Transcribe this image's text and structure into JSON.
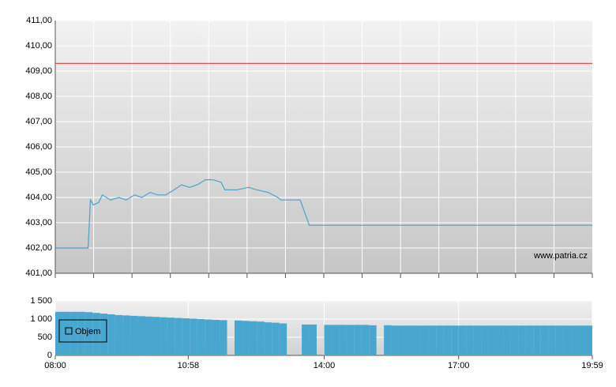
{
  "chart_data": [
    {
      "type": "line",
      "annotation": "www.patria.cz",
      "x": [
        "08:00",
        "08:44",
        "08:47",
        "08:51",
        "08:58",
        "09:03",
        "09:14",
        "09:25",
        "09:35",
        "09:46",
        "09:56",
        "10:07",
        "10:17",
        "10:28",
        "10:39",
        "10:49",
        "11:00",
        "11:10",
        "11:21",
        "11:31",
        "11:42",
        "11:47",
        "12:03",
        "12:19",
        "12:30",
        "12:45",
        "12:58",
        "13:02",
        "13:28",
        "13:40",
        "19:59"
      ],
      "series": [
        {
          "color": "#4aa3cc",
          "values": [
            402.0,
            402.0,
            403.9,
            403.7,
            403.8,
            404.1,
            403.9,
            404.0,
            403.9,
            404.1,
            404.0,
            404.2,
            404.1,
            404.1,
            404.3,
            404.5,
            404.4,
            404.5,
            404.7,
            404.7,
            404.6,
            404.3,
            404.3,
            404.4,
            404.3,
            404.2,
            404.0,
            403.9,
            403.9,
            402.9,
            402.9
          ]
        },
        {
          "color": "#d9534f",
          "values": [
            409.3,
            409.3,
            409.3,
            409.3,
            409.3,
            409.3,
            409.3,
            409.3,
            409.3,
            409.3,
            409.3,
            409.3,
            409.3,
            409.3,
            409.3,
            409.3,
            409.3,
            409.3,
            409.3,
            409.3,
            409.3,
            409.3,
            409.3,
            409.3,
            409.3,
            409.3,
            409.3,
            409.3,
            409.3,
            409.3,
            409.3
          ]
        }
      ],
      "xlim": [
        "08:00",
        "19:59"
      ],
      "ylim": [
        401,
        411
      ],
      "yticks": [
        {
          "value": 411,
          "label": "411,00"
        },
        {
          "value": 410,
          "label": "410,00"
        },
        {
          "value": 409,
          "label": "409,00"
        },
        {
          "value": 408,
          "label": "408,00"
        },
        {
          "value": 407,
          "label": "407,00"
        },
        {
          "value": 406,
          "label": "406,00"
        },
        {
          "value": 405,
          "label": "405,00"
        },
        {
          "value": 404,
          "label": "404,00"
        },
        {
          "value": 403,
          "label": "403,00"
        },
        {
          "value": 402,
          "label": "402,00"
        },
        {
          "value": 401,
          "label": "401,00"
        }
      ],
      "grid": true
    },
    {
      "type": "bar",
      "x": [
        "08:00",
        "08:10",
        "08:20",
        "08:30",
        "08:40",
        "08:50",
        "09:00",
        "09:10",
        "09:20",
        "09:30",
        "09:40",
        "09:50",
        "10:00",
        "10:10",
        "10:20",
        "10:30",
        "10:40",
        "10:50",
        "11:00",
        "11:10",
        "11:20",
        "11:30",
        "11:40",
        "11:50",
        "12:00",
        "12:10",
        "12:20",
        "12:30",
        "12:40",
        "12:50",
        "13:00",
        "13:10",
        "13:20",
        "13:30",
        "13:40",
        "13:50",
        "14:00",
        "14:10",
        "14:20",
        "14:30",
        "14:40",
        "14:50",
        "15:00",
        "15:10",
        "15:20",
        "15:30",
        "15:40",
        "15:50",
        "16:00",
        "16:10",
        "16:20",
        "16:30",
        "16:40",
        "16:50",
        "17:00",
        "17:10",
        "17:20",
        "17:30",
        "17:40",
        "17:50",
        "18:00",
        "18:10",
        "18:20",
        "18:30",
        "18:40",
        "18:50",
        "19:00",
        "19:10",
        "19:20",
        "19:30",
        "19:40",
        "19:50"
      ],
      "series": [
        {
          "name": "Objem",
          "color": "#48a6cf",
          "values": [
            1200,
            1200,
            1200,
            1200,
            1190,
            1170,
            1150,
            1130,
            1110,
            1100,
            1090,
            1080,
            1070,
            1060,
            1050,
            1040,
            1030,
            1020,
            1010,
            1000,
            990,
            980,
            970,
            0,
            960,
            950,
            940,
            930,
            910,
            900,
            880,
            0,
            0,
            850,
            850,
            0,
            840,
            840,
            840,
            840,
            840,
            840,
            830,
            0,
            830,
            820,
            820,
            820,
            820,
            820,
            820,
            820,
            820,
            820,
            820,
            820,
            820,
            820,
            820,
            820,
            820,
            820,
            820,
            820,
            820,
            820,
            820,
            820,
            820,
            820,
            820,
            820
          ]
        }
      ],
      "xlim": [
        "08:00",
        "19:59"
      ],
      "xticks": [
        "08:00",
        "10:58",
        "14:00",
        "17:00",
        "19:59"
      ],
      "ylim": [
        0,
        1500
      ],
      "yticks": [
        {
          "value": 1500,
          "label": "1 500"
        },
        {
          "value": 1000,
          "label": "1 000"
        },
        500,
        0
      ],
      "legend": "upper left",
      "grid": true
    }
  ]
}
